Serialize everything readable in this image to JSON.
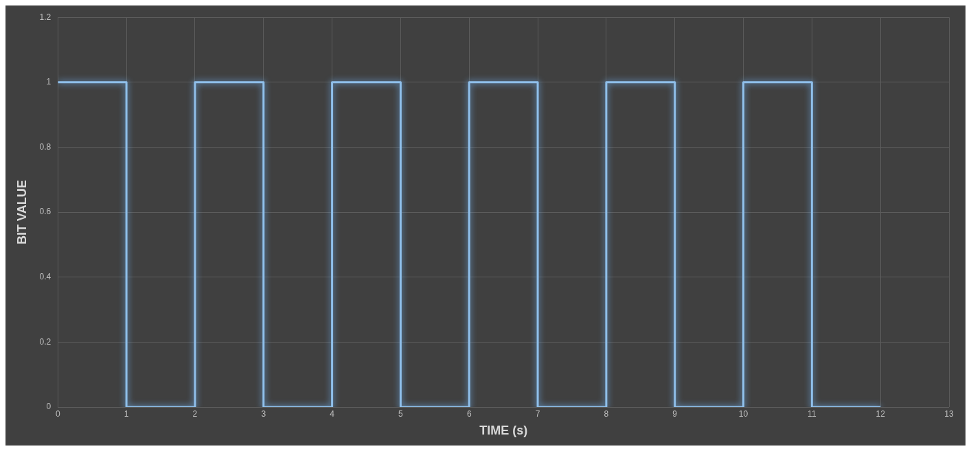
{
  "chart_data": {
    "type": "step",
    "xlabel": "TIME (s)",
    "ylabel": "BIT VALUE",
    "x": [
      0,
      1,
      2,
      3,
      4,
      5,
      6,
      7,
      8,
      9,
      10,
      11,
      12
    ],
    "series": [
      {
        "color": "#8fbfea",
        "values": [
          1,
          0,
          1,
          0,
          1,
          0,
          1,
          0,
          1,
          0,
          1,
          0,
          0
        ]
      }
    ],
    "xlim": [
      0,
      13
    ],
    "xticks": [
      0,
      1,
      2,
      3,
      4,
      5,
      6,
      7,
      8,
      9,
      10,
      11,
      12,
      13
    ],
    "ylim": [
      0,
      1.2
    ],
    "yticks": [
      0,
      0.2,
      0.4,
      0.6,
      0.8,
      1,
      1.2
    ],
    "grid": true,
    "marker": "none",
    "legend": false
  }
}
